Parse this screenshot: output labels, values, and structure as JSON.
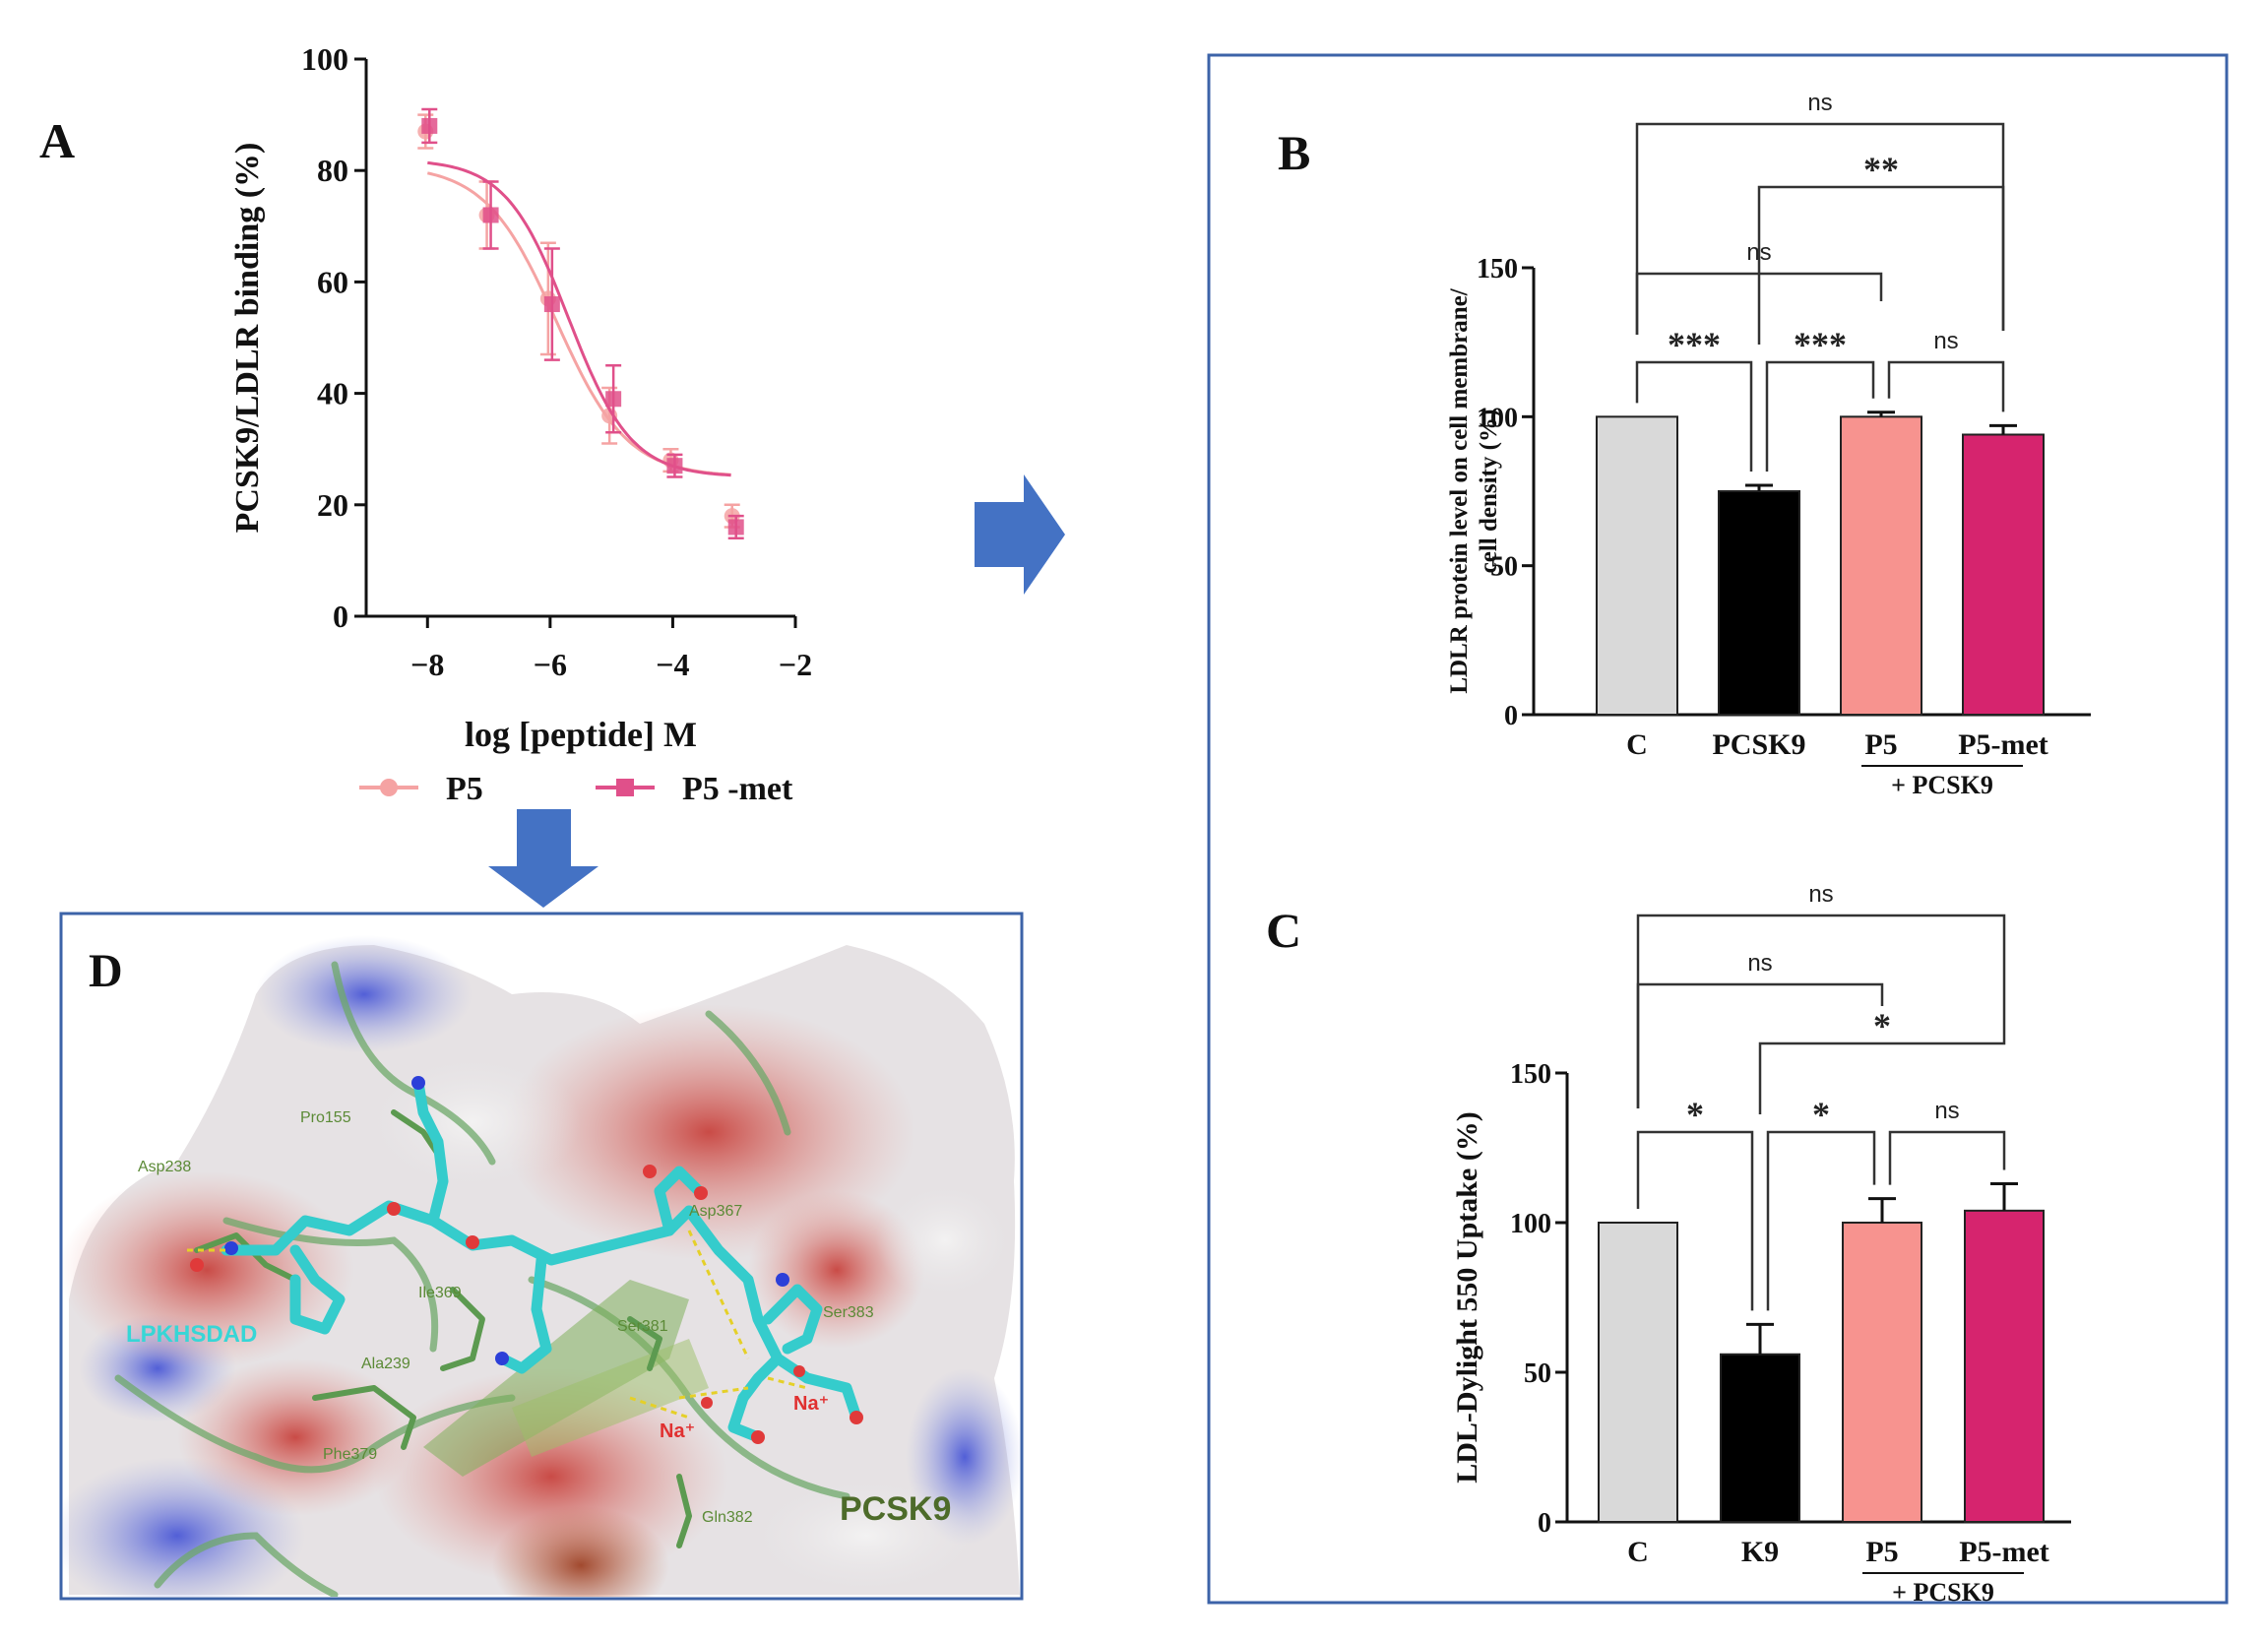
{
  "panels": {
    "a": "A",
    "b": "B",
    "c": "C",
    "d": "D"
  },
  "chart_data": [
    {
      "panel": "A",
      "type": "scatter",
      "ylabel": "PCSK9/LDLR binding (%)",
      "xlabel": "log [peptide] M",
      "xlim": [
        -9,
        -2
      ],
      "ylim": [
        0,
        100
      ],
      "xticks": [
        -8,
        -6,
        -4,
        -2
      ],
      "yticks": [
        0,
        20,
        40,
        60,
        80,
        100
      ],
      "xtick_labels": [
        "−8",
        "−6",
        "−4",
        "−2"
      ],
      "series": [
        {
          "name": "P5",
          "color": "#f5a3a3",
          "x": [
            -8,
            -7,
            -6,
            -5,
            -4,
            -3
          ],
          "y": [
            87,
            72,
            57,
            36,
            28,
            18
          ],
          "err": [
            3,
            6,
            10,
            5,
            2,
            2
          ],
          "fit": {
            "top": 81,
            "bottom": 25,
            "logIC50": -5.9,
            "hill": 0.75
          }
        },
        {
          "name": "P5 -met",
          "color": "#e0508a",
          "x": [
            -8,
            -7,
            -6,
            -5,
            -4,
            -3
          ],
          "y": [
            88,
            72,
            56,
            39,
            27,
            16
          ],
          "err": [
            3,
            6,
            10,
            6,
            2,
            2
          ],
          "fit": {
            "top": 82,
            "bottom": 25,
            "logIC50": -5.7,
            "hill": 0.85
          }
        }
      ]
    },
    {
      "panel": "B",
      "type": "bar",
      "ylabel_lines": [
        "LDLR protein level on cell membrane/",
        "cell density (%)"
      ],
      "ylim": [
        0,
        150
      ],
      "yticks": [
        0,
        50,
        100,
        150
      ],
      "categories": [
        "C",
        "PCSK9",
        "P5",
        "P5-met"
      ],
      "values": [
        100,
        75,
        100,
        94
      ],
      "errors": [
        0,
        2,
        1.5,
        3
      ],
      "colors": [
        "#d9d9d9",
        "#000000",
        "#f7938f",
        "#d6246e"
      ],
      "group_label": "+ PCSK9",
      "brackets": [
        {
          "from": 0,
          "to": 1,
          "text": "***",
          "level": 0
        },
        {
          "from": 1,
          "to": 2,
          "text": "***",
          "level": 0
        },
        {
          "from": 2,
          "to": 3,
          "text": "ns",
          "level": 0
        },
        {
          "from": 0,
          "to": 2,
          "text": "ns",
          "level": 1
        },
        {
          "from": 1,
          "to": 3,
          "text": "**",
          "level": 2
        },
        {
          "from": 0,
          "to": 3,
          "text": "ns",
          "level": 3
        }
      ]
    },
    {
      "panel": "C",
      "type": "bar",
      "ylabel_lines": [
        "LDL-Dylight 550 Uptake (%)"
      ],
      "ylim": [
        0,
        150
      ],
      "yticks": [
        0,
        50,
        100,
        150
      ],
      "categories": [
        "C",
        "K9",
        "P5",
        "P5-met"
      ],
      "values": [
        100,
        56,
        100,
        104
      ],
      "errors": [
        0,
        10,
        8,
        9
      ],
      "colors": [
        "#d9d9d9",
        "#000000",
        "#f7938f",
        "#d6246e"
      ],
      "group_label": "+ PCSK9",
      "brackets": [
        {
          "from": 0,
          "to": 1,
          "text": "*",
          "level": 0
        },
        {
          "from": 1,
          "to": 2,
          "text": "*",
          "level": 0
        },
        {
          "from": 2,
          "to": 3,
          "text": "ns",
          "level": 0
        },
        {
          "from": 1,
          "to": 3,
          "text": "*",
          "level": 1
        },
        {
          "from": 0,
          "to": 2,
          "text": "ns",
          "level": 2
        },
        {
          "from": 0,
          "to": 3,
          "text": "ns",
          "level": 3
        }
      ]
    }
  ],
  "panel_d": {
    "peptide": "LPKHSDAD",
    "protein": "PCSK9",
    "residues": [
      "Pro155",
      "Asp238",
      "Asp367",
      "Ile369",
      "Ser381",
      "Ser383",
      "Ala239",
      "Phe379",
      "Gln382"
    ],
    "ions": [
      "Na⁺",
      "Na⁺"
    ]
  },
  "colors": {
    "border": "#3c63a8",
    "arrow": "#4472c4"
  }
}
